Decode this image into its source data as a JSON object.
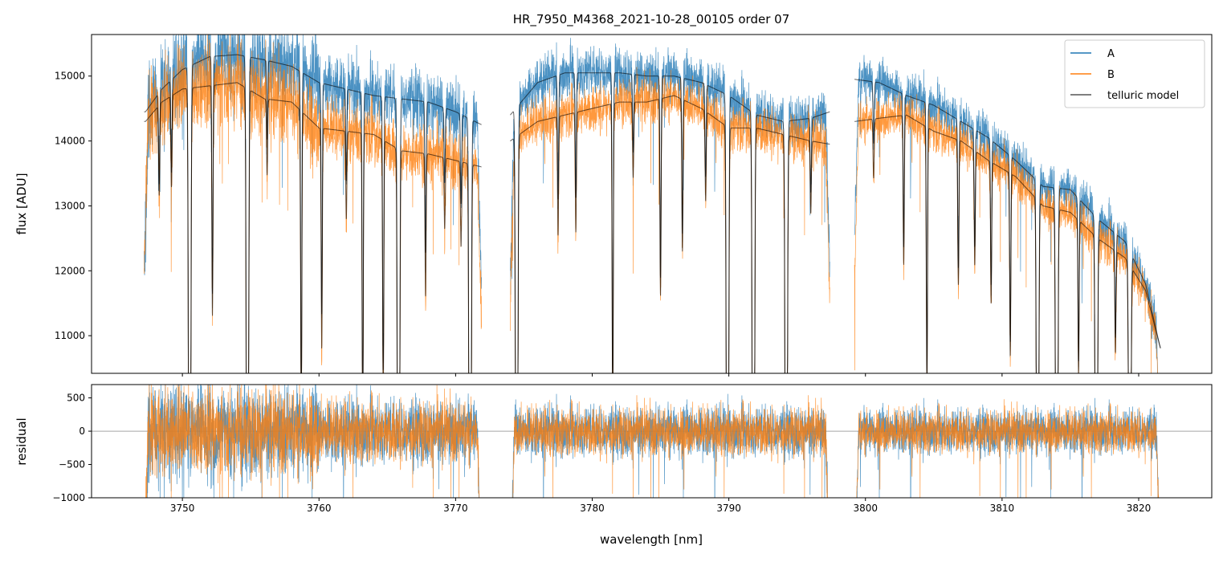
{
  "chart_data": [
    {
      "type": "line",
      "title": "HR_7950_M4368_2021-10-28_00105  order 07",
      "xlabel": "wavelength [nm]",
      "ylabel": "flux [ADU]",
      "xlim": [
        3743.35,
        3825.35
      ],
      "ylim": [
        10420,
        15640
      ],
      "xticks": [
        3750,
        3760,
        3770,
        3780,
        3790,
        3800,
        3810,
        3820
      ],
      "yticks": [
        11000,
        12000,
        13000,
        14000,
        15000
      ],
      "legend": {
        "position": "top-right",
        "entries": [
          "A",
          "B",
          "telluric model"
        ]
      },
      "grid": false,
      "segments": [
        [
          3747.2,
          3771.9
        ],
        [
          3774.0,
          3797.4
        ],
        [
          3799.2,
          3821.6
        ]
      ],
      "series": [
        {
          "name": "A",
          "color": "#1f77b4",
          "continuum": [
            [
              3747.3,
              14450
            ],
            [
              3748.5,
              14800
            ],
            [
              3750,
              15100
            ],
            [
              3752,
              15300
            ],
            [
              3754,
              15330
            ],
            [
              3756,
              15250
            ],
            [
              3758,
              15150
            ],
            [
              3760,
              14900
            ],
            [
              3762,
              14800
            ],
            [
              3764,
              14700
            ],
            [
              3766,
              14650
            ],
            [
              3768,
              14600
            ],
            [
              3770,
              14450
            ],
            [
              3771.9,
              14250
            ],
            [
              3774,
              14400
            ],
            [
              3776,
              14900
            ],
            [
              3778,
              15050
            ],
            [
              3780,
              15050
            ],
            [
              3782,
              15050
            ],
            [
              3784,
              15000
            ],
            [
              3786,
              15000
            ],
            [
              3788,
              14900
            ],
            [
              3790,
              14700
            ],
            [
              3792,
              14400
            ],
            [
              3794,
              14300
            ],
            [
              3796,
              14350
            ],
            [
              3797.4,
              14450
            ],
            [
              3799.2,
              14950
            ],
            [
              3801,
              14900
            ],
            [
              3803,
              14700
            ],
            [
              3805,
              14550
            ],
            [
              3807,
              14300
            ],
            [
              3809,
              14050
            ],
            [
              3811,
              13700
            ],
            [
              3813,
              13300
            ],
            [
              3815,
              13250
            ],
            [
              3817,
              12800
            ],
            [
              3819,
              12450
            ],
            [
              3820.5,
              11800
            ],
            [
              3821.6,
              10800
            ]
          ]
        },
        {
          "name": "B",
          "color": "#ff7f0e",
          "continuum": [
            [
              3747.3,
              14300
            ],
            [
              3748.5,
              14600
            ],
            [
              3750,
              14800
            ],
            [
              3752,
              14850
            ],
            [
              3754,
              14900
            ],
            [
              3756,
              14650
            ],
            [
              3758,
              14600
            ],
            [
              3760,
              14200
            ],
            [
              3762,
              14150
            ],
            [
              3764,
              14100
            ],
            [
              3766,
              13850
            ],
            [
              3768,
              13800
            ],
            [
              3770,
              13700
            ],
            [
              3771.9,
              13600
            ],
            [
              3774,
              14000
            ],
            [
              3776,
              14300
            ],
            [
              3778,
              14400
            ],
            [
              3780,
              14500
            ],
            [
              3782,
              14600
            ],
            [
              3784,
              14600
            ],
            [
              3786,
              14700
            ],
            [
              3788,
              14500
            ],
            [
              3790,
              14200
            ],
            [
              3792,
              14200
            ],
            [
              3794,
              14100
            ],
            [
              3796,
              14000
            ],
            [
              3797.4,
              13950
            ],
            [
              3799.2,
              14300
            ],
            [
              3801,
              14350
            ],
            [
              3803,
              14400
            ],
            [
              3805,
              14150
            ],
            [
              3807,
              14000
            ],
            [
              3809,
              13700
            ],
            [
              3811,
              13450
            ],
            [
              3813,
              13000
            ],
            [
              3815,
              12900
            ],
            [
              3817,
              12500
            ],
            [
              3819,
              12200
            ],
            [
              3820.5,
              11700
            ],
            [
              3821.6,
              10800
            ]
          ]
        },
        {
          "name": "telluric model",
          "color": "#000000"
        }
      ],
      "telluric_lines": [
        [
          3750.53,
          0.6
        ],
        [
          3754.76,
          0.6
        ],
        [
          3765.82,
          0.6
        ],
        [
          3771.06,
          0.6
        ],
        [
          3774.47,
          0.6
        ],
        [
          3789.9,
          0.6
        ],
        [
          3791.8,
          0.6
        ],
        [
          3794.2,
          0.6
        ],
        [
          3812.6,
          0.5
        ],
        [
          3814.0,
          0.5
        ],
        [
          3816.9,
          0.5
        ],
        [
          3819.35,
          0.5
        ],
        [
          3752.2,
          0.15
        ],
        [
          3758.7,
          0.22
        ],
        [
          3760.2,
          0.15
        ],
        [
          3763.2,
          0.22
        ],
        [
          3764.7,
          0.18
        ],
        [
          3767.8,
          0.1
        ],
        [
          3781.5,
          0.22
        ],
        [
          3777.5,
          0.08
        ],
        [
          3778.8,
          0.08
        ],
        [
          3785.0,
          0.13
        ],
        [
          3786.6,
          0.1
        ],
        [
          3802.8,
          0.1
        ],
        [
          3804.5,
          0.18
        ],
        [
          3806.8,
          0.1
        ],
        [
          3809.2,
          0.1
        ],
        [
          3810.6,
          0.13
        ],
        [
          3815.6,
          0.12
        ],
        [
          3748.3,
          0.06
        ],
        [
          3749.2,
          0.06
        ],
        [
          3756.2,
          0.05
        ],
        [
          3762.0,
          0.06
        ],
        [
          3769.2,
          0.05
        ],
        [
          3770.4,
          0.06
        ],
        [
          3783.0,
          0.05
        ],
        [
          3788.3,
          0.06
        ],
        [
          3796.0,
          0.05
        ],
        [
          3800.6,
          0.04
        ],
        [
          3808.0,
          0.08
        ],
        [
          3818.3,
          0.08
        ]
      ]
    },
    {
      "type": "line",
      "xlabel": "wavelength [nm]",
      "ylabel": "residual",
      "xlim": [
        3743.35,
        3825.35
      ],
      "ylim": [
        -1000,
        700
      ],
      "xticks": [
        3750,
        3760,
        3770,
        3780,
        3790,
        3800,
        3810,
        3820
      ],
      "yticks": [
        -1000,
        -500,
        0,
        500
      ],
      "residual_rms": [
        [
          3747.2,
          3760,
          320
        ],
        [
          3760,
          3771.9,
          230
        ],
        [
          3774.0,
          3797.4,
          180
        ],
        [
          3799.2,
          3821.6,
          160
        ]
      ]
    }
  ]
}
